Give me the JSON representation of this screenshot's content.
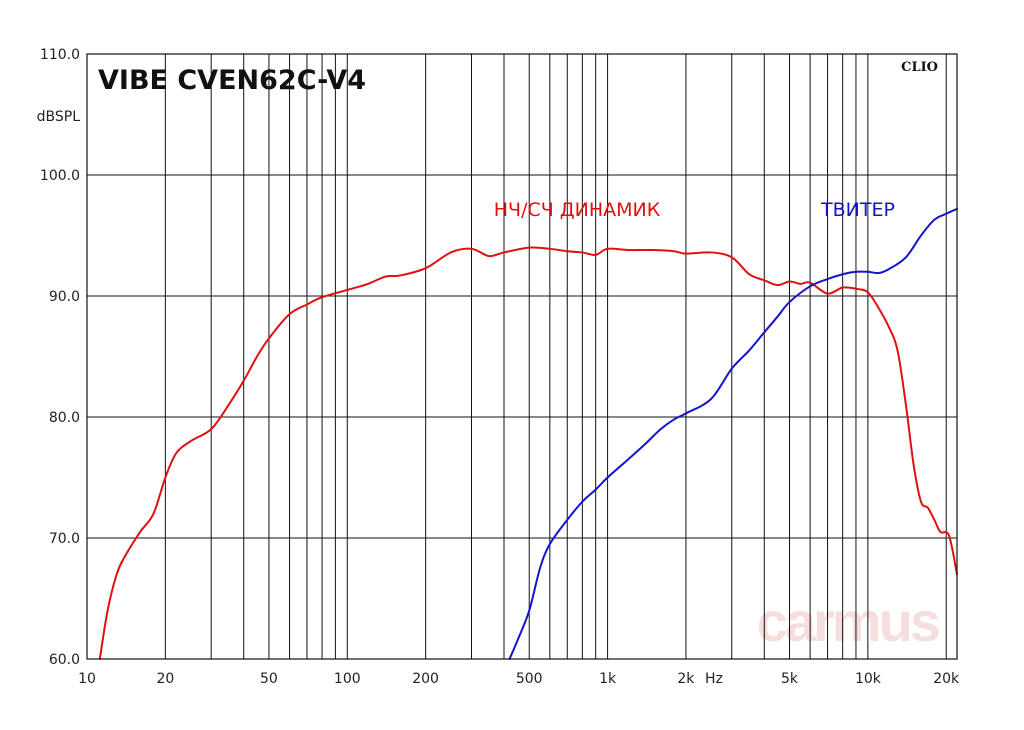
{
  "chart_data": {
    "type": "line",
    "title": "VIBE CVEN62C-V4",
    "brand": "CLIO",
    "ylabel": "dBSPL",
    "xunit": "Hz",
    "xscale": "log",
    "xlim": [
      10,
      22000
    ],
    "ylim": [
      60,
      110
    ],
    "grid": true,
    "x_ticks": [
      {
        "v": 10,
        "label": "10"
      },
      {
        "v": 20,
        "label": "20"
      },
      {
        "v": 50,
        "label": "50"
      },
      {
        "v": 100,
        "label": "100"
      },
      {
        "v": 200,
        "label": "200"
      },
      {
        "v": 500,
        "label": "500"
      },
      {
        "v": 1000,
        "label": "1k"
      },
      {
        "v": 2000,
        "label": "2k"
      },
      {
        "v": 5000,
        "label": "5k"
      },
      {
        "v": 10000,
        "label": "10k"
      },
      {
        "v": 20000,
        "label": "20k"
      }
    ],
    "y_ticks": [
      {
        "v": 60,
        "label": "60.0"
      },
      {
        "v": 70,
        "label": "70.0"
      },
      {
        "v": 80,
        "label": "80.0"
      },
      {
        "v": 90,
        "label": "90.0"
      },
      {
        "v": 100,
        "label": "100.0"
      },
      {
        "v": 110,
        "label": "110.0"
      }
    ],
    "series": [
      {
        "name": "НЧ/СЧ ДИНАМИК",
        "color": "#e01010",
        "points": [
          [
            11.2,
            60.0
          ],
          [
            12,
            64.0
          ],
          [
            13,
            67.0
          ],
          [
            14,
            68.5
          ],
          [
            16,
            70.5
          ],
          [
            18,
            72.0
          ],
          [
            20,
            75.0
          ],
          [
            22,
            77.0
          ],
          [
            25,
            78.0
          ],
          [
            30,
            79.0
          ],
          [
            35,
            81.0
          ],
          [
            40,
            83.0
          ],
          [
            45,
            85.0
          ],
          [
            50,
            86.5
          ],
          [
            60,
            88.5
          ],
          [
            70,
            89.3
          ],
          [
            80,
            89.9
          ],
          [
            100,
            90.5
          ],
          [
            120,
            91.0
          ],
          [
            140,
            91.6
          ],
          [
            160,
            91.7
          ],
          [
            200,
            92.3
          ],
          [
            250,
            93.6
          ],
          [
            300,
            93.9
          ],
          [
            350,
            93.3
          ],
          [
            400,
            93.6
          ],
          [
            500,
            94.0
          ],
          [
            600,
            93.9
          ],
          [
            700,
            93.7
          ],
          [
            800,
            93.6
          ],
          [
            900,
            93.4
          ],
          [
            1000,
            93.9
          ],
          [
            1200,
            93.8
          ],
          [
            1500,
            93.8
          ],
          [
            1800,
            93.7
          ],
          [
            2000,
            93.5
          ],
          [
            2500,
            93.6
          ],
          [
            3000,
            93.2
          ],
          [
            3500,
            91.8
          ],
          [
            4000,
            91.3
          ],
          [
            4500,
            90.9
          ],
          [
            5000,
            91.2
          ],
          [
            5500,
            91.0
          ],
          [
            6000,
            91.1
          ],
          [
            7000,
            90.2
          ],
          [
            8000,
            90.7
          ],
          [
            9000,
            90.6
          ],
          [
            10000,
            90.3
          ],
          [
            11000,
            89.0
          ],
          [
            12000,
            87.5
          ],
          [
            13000,
            85.5
          ],
          [
            14000,
            81.0
          ],
          [
            15000,
            76.0
          ],
          [
            16000,
            73.0
          ],
          [
            17000,
            72.5
          ],
          [
            18000,
            71.5
          ],
          [
            19000,
            70.5
          ],
          [
            20500,
            70.2
          ],
          [
            22000,
            67.0
          ]
        ]
      },
      {
        "name": "ТВИТЕР",
        "color": "#1414cc",
        "points": [
          [
            420,
            60.0
          ],
          [
            450,
            61.5
          ],
          [
            500,
            64.0
          ],
          [
            550,
            67.5
          ],
          [
            600,
            69.5
          ],
          [
            700,
            71.5
          ],
          [
            800,
            73.0
          ],
          [
            900,
            74.0
          ],
          [
            1000,
            75.0
          ],
          [
            1200,
            76.5
          ],
          [
            1400,
            77.8
          ],
          [
            1600,
            79.0
          ],
          [
            1800,
            79.8
          ],
          [
            2000,
            80.3
          ],
          [
            2500,
            81.5
          ],
          [
            3000,
            84.0
          ],
          [
            3500,
            85.5
          ],
          [
            4000,
            87.0
          ],
          [
            4500,
            88.3
          ],
          [
            5000,
            89.5
          ],
          [
            6000,
            90.8
          ],
          [
            7000,
            91.4
          ],
          [
            8000,
            91.8
          ],
          [
            9000,
            92.0
          ],
          [
            10000,
            92.0
          ],
          [
            11000,
            91.9
          ],
          [
            12000,
            92.2
          ],
          [
            14000,
            93.2
          ],
          [
            16000,
            95.0
          ],
          [
            18000,
            96.3
          ],
          [
            20000,
            96.8
          ],
          [
            22000,
            97.2
          ]
        ]
      }
    ]
  },
  "watermark": "carmus",
  "colors": {
    "grid": "#111111",
    "background": "#ffffff",
    "watermark": "#f6dede"
  }
}
